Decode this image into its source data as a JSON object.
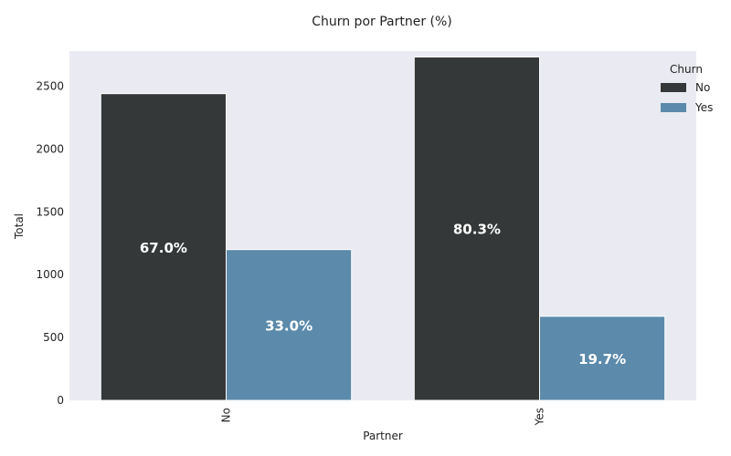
{
  "chart_data": {
    "type": "bar",
    "title": "Churn por Partner (%)",
    "xlabel": "Partner",
    "ylabel": "Total",
    "categories": [
      "No",
      "Yes"
    ],
    "series": [
      {
        "name": "No",
        "values": [
          2441,
          2733
        ],
        "labels": [
          "67.0%",
          "80.3%"
        ],
        "color": "#343838"
      },
      {
        "name": "Yes",
        "values": [
          1200,
          669
        ],
        "labels": [
          "33.0%",
          "19.7%"
        ],
        "color": "#5b8aab"
      }
    ],
    "ylim": [
      0,
      2780
    ],
    "yticks": [
      0,
      500,
      1000,
      1500,
      2000,
      2500
    ],
    "legend": {
      "title": "Churn",
      "position": "top-right"
    },
    "grid": false,
    "background": "#eaeaf2"
  }
}
